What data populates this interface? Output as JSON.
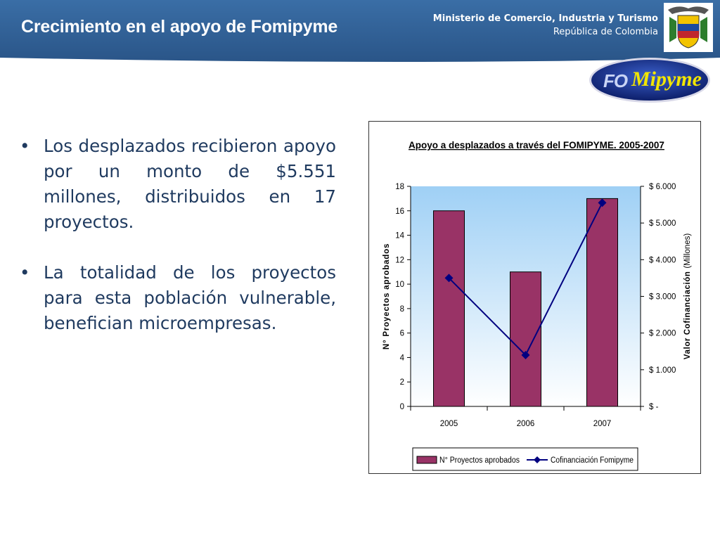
{
  "header": {
    "title": "Crecimiento en el apoyo de Fomipyme",
    "ministry_line1": "Ministerio de Comercio, Industria y Turismo",
    "ministry_line2": "República de Colombia",
    "logo_text": "FOMipyme"
  },
  "bullets": [
    "Los desplazados recibieron apoyo por un monto de $5.551 millones, distribuidos en 17 proyectos.",
    "La totalidad de los proyectos para esta población vulnerable, benefician microempresas."
  ],
  "colors": {
    "header_blue": "#2f5f93",
    "bar": "#993366",
    "line": "#000080",
    "plot_gradient_top": "#9fd0f5",
    "text_blue": "#1f3a5f"
  },
  "chart_data": {
    "type": "bar",
    "title": "Apoyo a desplazados a través del FOMIPYME. 2005-2007",
    "categories": [
      "2005",
      "2006",
      "2007"
    ],
    "series": [
      {
        "name": "N° Proyectos aprobados",
        "type": "bar",
        "axis": "left",
        "values": [
          16,
          11,
          17
        ]
      },
      {
        "name": "Cofinanciación Fomipyme",
        "type": "line",
        "axis": "right",
        "values": [
          3500,
          1400,
          5551
        ]
      }
    ],
    "ylabel": "N° Proyectos aprobados",
    "ylim": [
      0,
      18
    ],
    "yticks": [
      "0",
      "2",
      "4",
      "6",
      "8",
      "10",
      "12",
      "14",
      "16",
      "18"
    ],
    "y2label_bold": "Valor Cofinanciación",
    "y2label_normal": "(Millones)",
    "y2lim": [
      0,
      6000
    ],
    "y2ticks": [
      "$ -",
      "$ 1.000",
      "$ 2.000",
      "$ 3.000",
      "$ 4.000",
      "$ 5.000",
      "$ 6.000"
    ],
    "legend_position": "bottom"
  }
}
